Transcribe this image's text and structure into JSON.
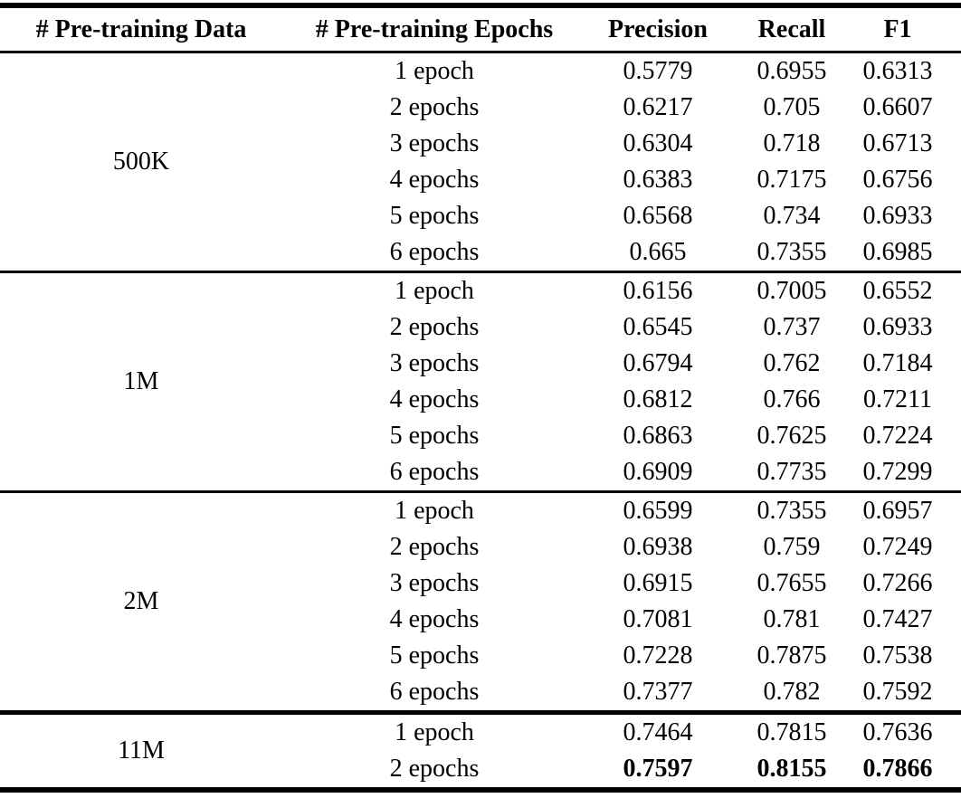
{
  "table": {
    "headers": [
      "# Pre-training Data",
      "# Pre-training Epochs",
      "Precision",
      "Recall",
      "F1"
    ],
    "groups": [
      {
        "pretraining_data": "500K",
        "rows": [
          {
            "epochs": "1 epoch",
            "precision": "0.5779",
            "recall": "0.6955",
            "f1": "0.6313",
            "bold": false
          },
          {
            "epochs": "2 epochs",
            "precision": "0.6217",
            "recall": "0.705",
            "f1": "0.6607",
            "bold": false
          },
          {
            "epochs": "3 epochs",
            "precision": "0.6304",
            "recall": "0.718",
            "f1": "0.6713",
            "bold": false
          },
          {
            "epochs": "4 epochs",
            "precision": "0.6383",
            "recall": "0.7175",
            "f1": "0.6756",
            "bold": false
          },
          {
            "epochs": "5 epochs",
            "precision": "0.6568",
            "recall": "0.734",
            "f1": "0.6933",
            "bold": false
          },
          {
            "epochs": "6 epochs",
            "precision": "0.665",
            "recall": "0.7355",
            "f1": "0.6985",
            "bold": false
          }
        ]
      },
      {
        "pretraining_data": "1M",
        "rows": [
          {
            "epochs": "1 epoch",
            "precision": "0.6156",
            "recall": "0.7005",
            "f1": "0.6552",
            "bold": false
          },
          {
            "epochs": "2 epochs",
            "precision": "0.6545",
            "recall": "0.737",
            "f1": "0.6933",
            "bold": false
          },
          {
            "epochs": "3 epochs",
            "precision": "0.6794",
            "recall": "0.762",
            "f1": "0.7184",
            "bold": false
          },
          {
            "epochs": "4 epochs",
            "precision": "0.6812",
            "recall": "0.766",
            "f1": "0.7211",
            "bold": false
          },
          {
            "epochs": "5 epochs",
            "precision": "0.6863",
            "recall": "0.7625",
            "f1": "0.7224",
            "bold": false
          },
          {
            "epochs": "6 epochs",
            "precision": "0.6909",
            "recall": "0.7735",
            "f1": "0.7299",
            "bold": false
          }
        ]
      },
      {
        "pretraining_data": "2M",
        "rows": [
          {
            "epochs": "1 epoch",
            "precision": "0.6599",
            "recall": "0.7355",
            "f1": "0.6957",
            "bold": false
          },
          {
            "epochs": "2 epochs",
            "precision": "0.6938",
            "recall": "0.759",
            "f1": "0.7249",
            "bold": false
          },
          {
            "epochs": "3 epochs",
            "precision": "0.6915",
            "recall": "0.7655",
            "f1": "0.7266",
            "bold": false
          },
          {
            "epochs": "4 epochs",
            "precision": "0.7081",
            "recall": "0.781",
            "f1": "0.7427",
            "bold": false
          },
          {
            "epochs": "5 epochs",
            "precision": "0.7228",
            "recall": "0.7875",
            "f1": "0.7538",
            "bold": false
          },
          {
            "epochs": "6 epochs",
            "precision": "0.7377",
            "recall": "0.782",
            "f1": "0.7592",
            "bold": false
          }
        ]
      },
      {
        "pretraining_data": "11M",
        "rows": [
          {
            "epochs": "1 epoch",
            "precision": "0.7464",
            "recall": "0.7815",
            "f1": "0.7636",
            "bold": false
          },
          {
            "epochs": "2 epochs",
            "precision": "0.7597",
            "recall": "0.8155",
            "f1": "0.7866",
            "bold": true
          }
        ]
      }
    ]
  }
}
